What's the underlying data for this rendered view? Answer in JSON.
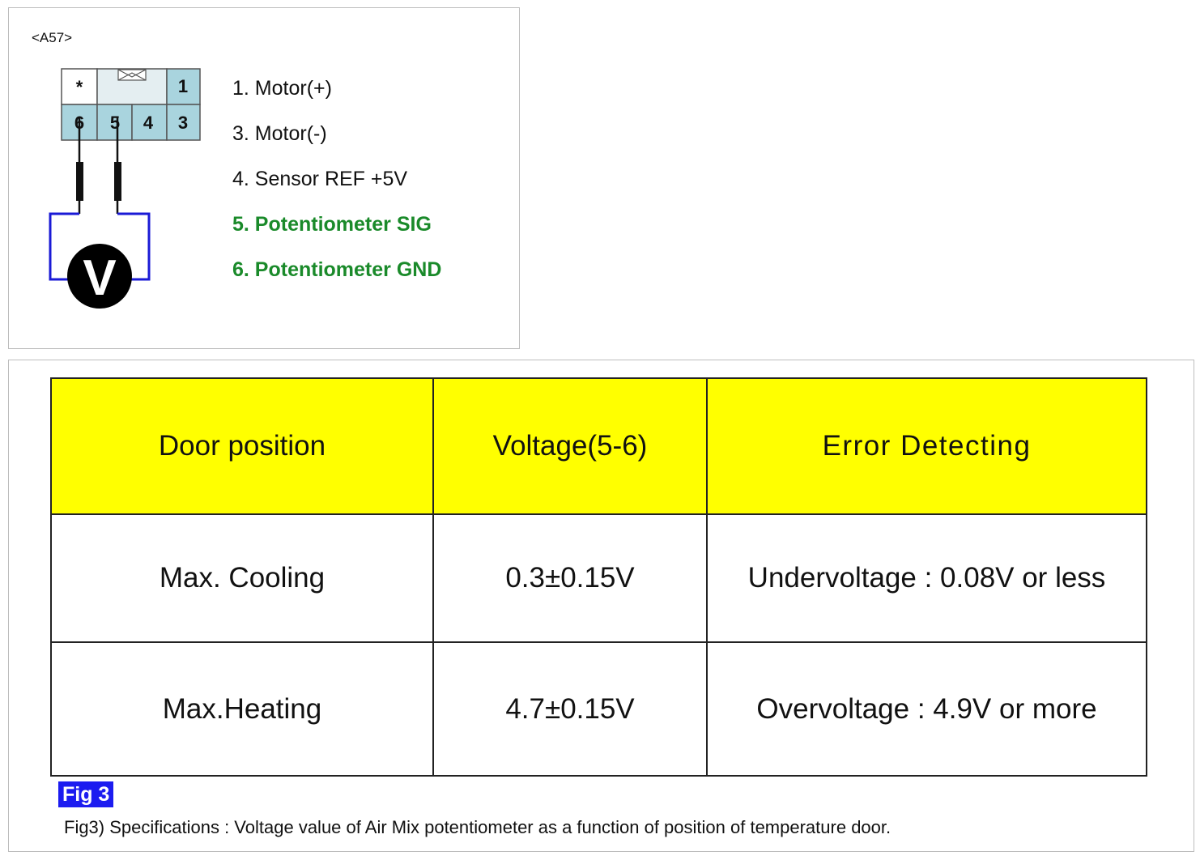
{
  "connector": {
    "id": "<A57>",
    "cells": {
      "star": "*",
      "pin1": "1",
      "pin6": "6",
      "pin5": "5",
      "pin4": "4",
      "pin3": "3"
    },
    "meter_symbol": "V"
  },
  "pins": [
    {
      "label": "1. Motor(+)",
      "highlight": false
    },
    {
      "label": "3. Motor(-)",
      "highlight": false
    },
    {
      "label": "4. Sensor REF +5V",
      "highlight": false
    },
    {
      "label": "5. Potentiometer SIG",
      "highlight": true
    },
    {
      "label": "6. Potentiometer GND",
      "highlight": true
    }
  ],
  "table": {
    "headers": [
      "Door position",
      "Voltage(5-6)",
      "Error Detecting"
    ],
    "rows": [
      [
        "Max. Cooling",
        "0.3±0.15V",
        "Undervoltage : 0.08V or less"
      ],
      [
        "Max.Heating",
        "4.7±0.15V",
        "Overvoltage : 4.9V or more"
      ]
    ]
  },
  "figure": {
    "tag": "Fig 3",
    "caption": "Fig3) Specifications : Voltage value of Air Mix potentiometer as a function of position of temperature door."
  },
  "colors": {
    "header_bg": "#ffff00",
    "pin_highlight": "#1a8a2a",
    "connector_fill": "#a9d4de",
    "wire": "#1a1ad6",
    "fig_tag_bg": "#1c1cf0"
  }
}
